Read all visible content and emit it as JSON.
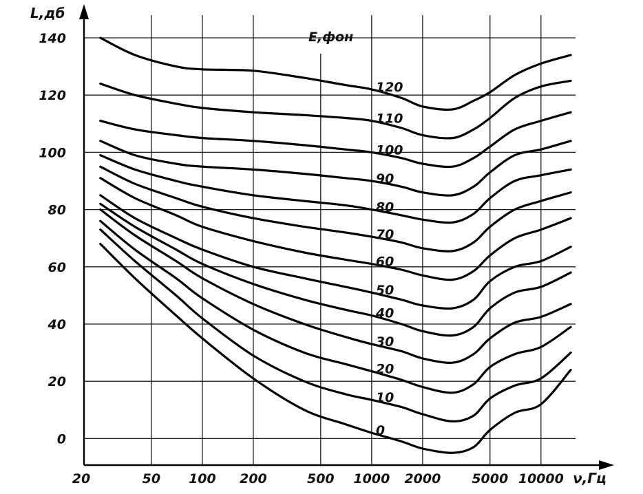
{
  "chart_data": {
    "type": "line",
    "xscale": "log",
    "ylabel": "L,дб",
    "xlabel": "ν,Гц",
    "legend_title": "E,фон",
    "grid": true,
    "xlim": [
      20,
      16000
    ],
    "ylim": [
      -10,
      145
    ],
    "x_ticks": [
      20,
      50,
      100,
      200,
      500,
      1000,
      2000,
      5000,
      10000
    ],
    "x_tick_labels": [
      "20",
      "50",
      "100",
      "200",
      "500",
      "1000",
      "2000",
      "5000",
      "10000"
    ],
    "y_ticks": [
      0,
      20,
      40,
      60,
      80,
      100,
      120,
      140
    ],
    "y_tick_labels": [
      "0",
      "20",
      "40",
      "60",
      "80",
      "100",
      "120",
      "140"
    ],
    "x": [
      25,
      40,
      70,
      100,
      200,
      400,
      700,
      1000,
      1500,
      2000,
      3000,
      4000,
      5000,
      7000,
      10000,
      15000
    ],
    "series": [
      {
        "name": "120",
        "values": [
          140,
          134,
          130,
          129,
          128.5,
          126,
          123.5,
          122,
          119,
          116,
          115,
          118,
          121,
          127,
          131,
          134
        ]
      },
      {
        "name": "110",
        "values": [
          124,
          120,
          117,
          115.5,
          114,
          113,
          112,
          111,
          108.5,
          106,
          105,
          108,
          112,
          119,
          123,
          125
        ]
      },
      {
        "name": "100",
        "values": [
          111,
          108,
          106,
          105,
          104,
          102.5,
          101,
          100,
          98,
          96,
          95,
          98,
          102,
          108,
          111,
          114
        ]
      },
      {
        "name": "90",
        "values": [
          104,
          99,
          96,
          95,
          94,
          92.5,
          91,
          90,
          88,
          86,
          85,
          88,
          93,
          99,
          101,
          104
        ]
      },
      {
        "name": "80",
        "values": [
          99,
          94,
          90,
          88,
          85,
          83,
          81.5,
          80,
          78,
          76.5,
          75.5,
          78.5,
          84,
          90,
          92,
          94
        ]
      },
      {
        "name": "70",
        "values": [
          95,
          89,
          84,
          81,
          77,
          74,
          72,
          70.5,
          68.5,
          66.5,
          65.5,
          68.5,
          74,
          80,
          83,
          86
        ]
      },
      {
        "name": "60",
        "values": [
          91,
          84,
          78,
          74,
          69,
          65,
          62.5,
          61,
          59,
          57,
          55.5,
          58.5,
          64,
          70,
          73,
          77
        ]
      },
      {
        "name": "50",
        "values": [
          85,
          77,
          70,
          66,
          60,
          56,
          53,
          51,
          48.5,
          46.5,
          45.5,
          48.5,
          55,
          60,
          62,
          67
        ]
      },
      {
        "name": "40",
        "values": [
          82,
          74,
          66,
          61,
          54,
          48.5,
          45,
          43,
          40,
          37.5,
          36,
          39,
          45.5,
          51,
          53,
          58
        ]
      },
      {
        "name": "30",
        "values": [
          80,
          71,
          62,
          56,
          47,
          40,
          35.5,
          33,
          30.5,
          28,
          26.5,
          29.5,
          35,
          40.5,
          42.5,
          47
        ]
      },
      {
        "name": "20",
        "values": [
          76,
          66,
          56,
          49,
          38,
          30,
          26,
          23.5,
          20.5,
          18,
          16,
          19,
          25,
          29.5,
          32,
          39
        ]
      },
      {
        "name": "10",
        "values": [
          73,
          62,
          50,
          42,
          29,
          20,
          15.5,
          13.5,
          11,
          8.5,
          6,
          8,
          14,
          18.5,
          21,
          30
        ]
      },
      {
        "name": "0",
        "values": [
          68,
          56,
          43,
          35,
          21,
          10,
          5,
          2,
          -1,
          -3.5,
          -5,
          -3,
          3,
          9,
          12,
          24
        ]
      }
    ]
  }
}
